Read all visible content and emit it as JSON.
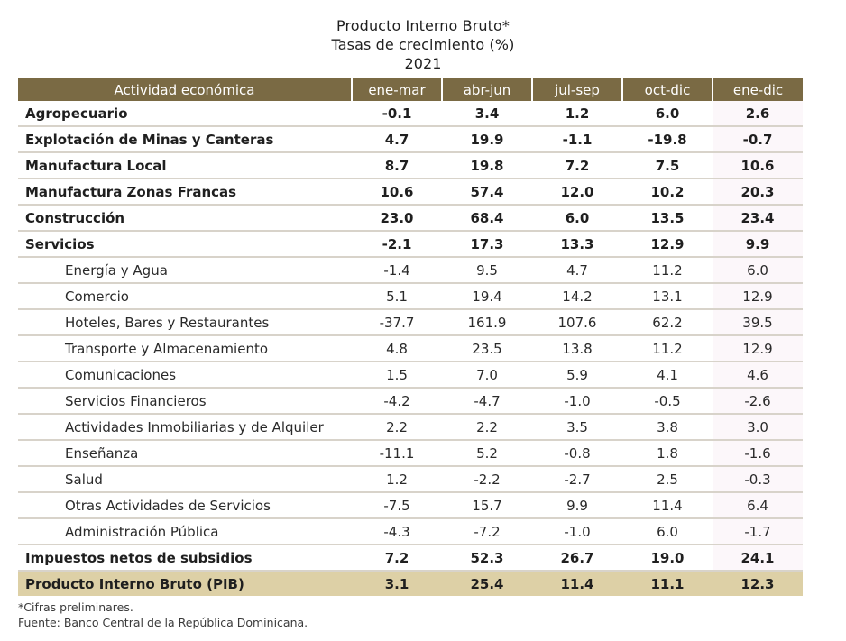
{
  "title": {
    "line1": "Producto Interno Bruto*",
    "line2": "Tasas de crecimiento (%)",
    "line3": "2021"
  },
  "table": {
    "headers": [
      "Actividad económica",
      "ene-mar",
      "abr-jun",
      "jul-sep",
      "oct-dic",
      "ene-dic"
    ],
    "rows": [
      {
        "label": "Agropecuario",
        "values": [
          "-0.1",
          "3.4",
          "1.2",
          "6.0",
          "2.6"
        ]
      },
      {
        "label": "Explotación de Minas y Canteras",
        "values": [
          "4.7",
          "19.9",
          "-1.1",
          "-19.8",
          "-0.7"
        ]
      },
      {
        "label": "Manufactura Local",
        "values": [
          "8.7",
          "19.8",
          "7.2",
          "7.5",
          "10.6"
        ]
      },
      {
        "label": "Manufactura Zonas Francas",
        "values": [
          "10.6",
          "57.4",
          "12.0",
          "10.2",
          "20.3"
        ]
      },
      {
        "label": "Construcción",
        "values": [
          "23.0",
          "68.4",
          "6.0",
          "13.5",
          "23.4"
        ]
      },
      {
        "label": "Servicios",
        "values": [
          "-2.1",
          "17.3",
          "13.3",
          "12.9",
          "9.9"
        ]
      },
      {
        "label": "Energía y Agua",
        "values": [
          "-1.4",
          "9.5",
          "4.7",
          "11.2",
          "6.0"
        ]
      },
      {
        "label": "Comercio",
        "values": [
          "5.1",
          "19.4",
          "14.2",
          "13.1",
          "12.9"
        ]
      },
      {
        "label": "Hoteles, Bares y Restaurantes",
        "values": [
          "-37.7",
          "161.9",
          "107.6",
          "62.2",
          "39.5"
        ]
      },
      {
        "label": "Transporte y Almacenamiento",
        "values": [
          "4.8",
          "23.5",
          "13.8",
          "11.2",
          "12.9"
        ]
      },
      {
        "label": "Comunicaciones",
        "values": [
          "1.5",
          "7.0",
          "5.9",
          "4.1",
          "4.6"
        ]
      },
      {
        "label": "Servicios Financieros",
        "values": [
          "-4.2",
          "-4.7",
          "-1.0",
          "-0.5",
          "-2.6"
        ]
      },
      {
        "label": "Actividades Inmobiliarias y de Alquiler",
        "values": [
          "2.2",
          "2.2",
          "3.5",
          "3.8",
          "3.0"
        ]
      },
      {
        "label": "Enseñanza",
        "values": [
          "-11.1",
          "5.2",
          "-0.8",
          "1.8",
          "-1.6"
        ]
      },
      {
        "label": "Salud",
        "values": [
          "1.2",
          "-2.2",
          "-2.7",
          "2.5",
          "-0.3"
        ]
      },
      {
        "label": "Otras Actividades de Servicios",
        "values": [
          "-7.5",
          "15.7",
          "9.9",
          "11.4",
          "6.4"
        ]
      },
      {
        "label": "Administración Pública",
        "values": [
          "-4.3",
          "-7.2",
          "-1.0",
          "6.0",
          "-1.7"
        ]
      },
      {
        "label": "Impuestos netos de subsidios",
        "values": [
          "7.2",
          "52.3",
          "26.7",
          "19.0",
          "24.1"
        ]
      },
      {
        "label": "Producto Interno Bruto (PIB)",
        "values": [
          "3.1",
          "25.4",
          "11.4",
          "11.1",
          "12.3"
        ]
      }
    ]
  },
  "footnotes": {
    "note1": "*Cifras preliminares.",
    "source": "Fuente: Banco Central de la República Dominicana."
  },
  "colors": {
    "header_bg": "#7a6a44",
    "total_row_bg": "#ddd0a6",
    "annual_col_bg": "#fcf7fa",
    "row_divider": "#d8d3ca"
  }
}
